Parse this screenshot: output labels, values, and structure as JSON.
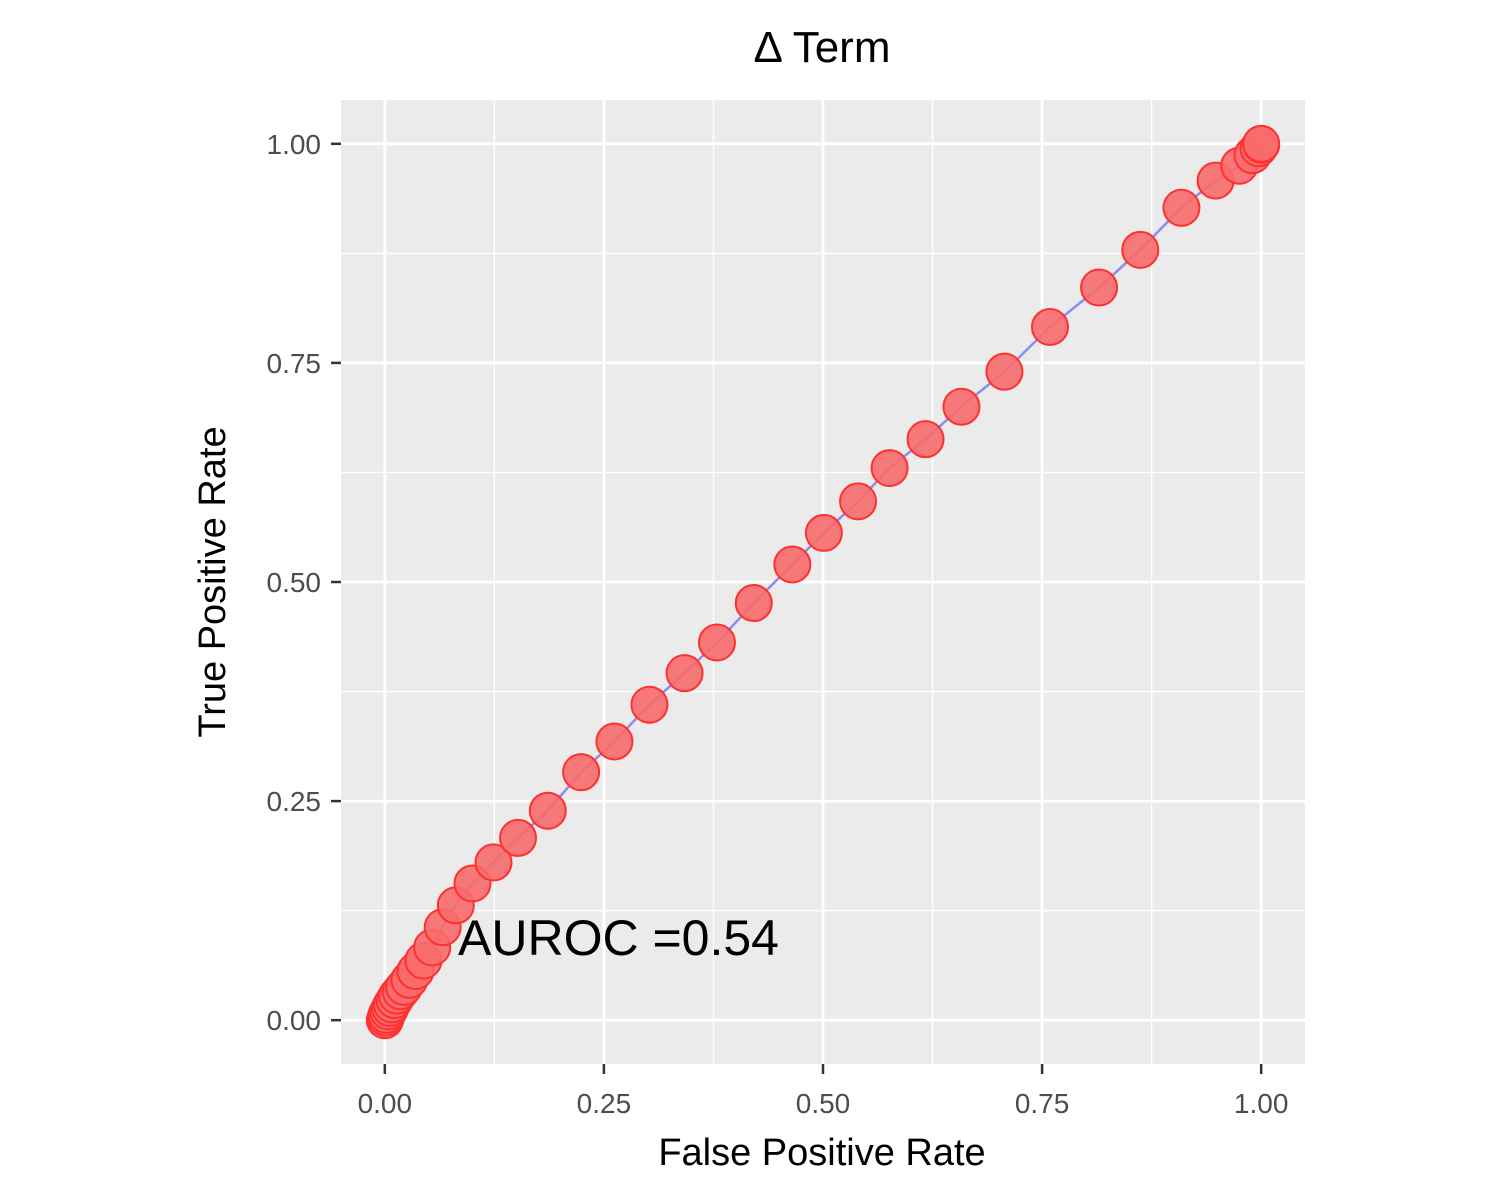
{
  "chart_data": {
    "type": "scatter",
    "title": "Δ Term",
    "xlabel": "False Positive Rate",
    "ylabel": "True Positive Rate",
    "xlim": [
      -0.05,
      1.05
    ],
    "ylim": [
      -0.05,
      1.05
    ],
    "xticks": [
      0,
      0.25,
      0.5,
      0.75,
      1
    ],
    "yticks": [
      0,
      0.25,
      0.5,
      0.75,
      1
    ],
    "xtick_labels": [
      "0.00",
      "0.25",
      "0.50",
      "0.75",
      "1.00"
    ],
    "ytick_labels": [
      "0.00",
      "0.25",
      "0.50",
      "0.75",
      "1.00"
    ],
    "grid": true,
    "line_color": "#8c8cf0",
    "point_color": "#f86b6b",
    "point_edge_color": "#ff3030",
    "panel_color": "#ebebeb",
    "annotation": "AUROC =0.54",
    "series": [
      {
        "x": [
          0,
          0.001,
          0.002,
          0.004,
          0.006,
          0.008,
          0.011,
          0.014,
          0.018,
          0.022,
          0.028,
          0.035,
          0.044,
          0.054,
          0.066,
          0.081,
          0.1,
          0.124,
          0.152,
          0.186,
          0.224,
          0.262,
          0.302,
          0.342,
          0.379,
          0.421,
          0.465,
          0.501,
          0.54,
          0.576,
          0.617,
          0.658,
          0.707,
          0.759,
          0.815,
          0.862,
          0.909,
          0.948,
          0.975,
          0.99,
          0.997,
          1,
          1
        ],
        "y": [
          0,
          0.003,
          0.006,
          0.01,
          0.014,
          0.018,
          0.023,
          0.028,
          0.033,
          0.038,
          0.046,
          0.056,
          0.068,
          0.083,
          0.106,
          0.131,
          0.156,
          0.18,
          0.208,
          0.239,
          0.283,
          0.318,
          0.36,
          0.396,
          0.431,
          0.476,
          0.52,
          0.556,
          0.592,
          0.63,
          0.663,
          0.7,
          0.74,
          0.791,
          0.836,
          0.879,
          0.927,
          0.958,
          0.975,
          0.987,
          0.995,
          0.999,
          1
        ]
      }
    ]
  }
}
